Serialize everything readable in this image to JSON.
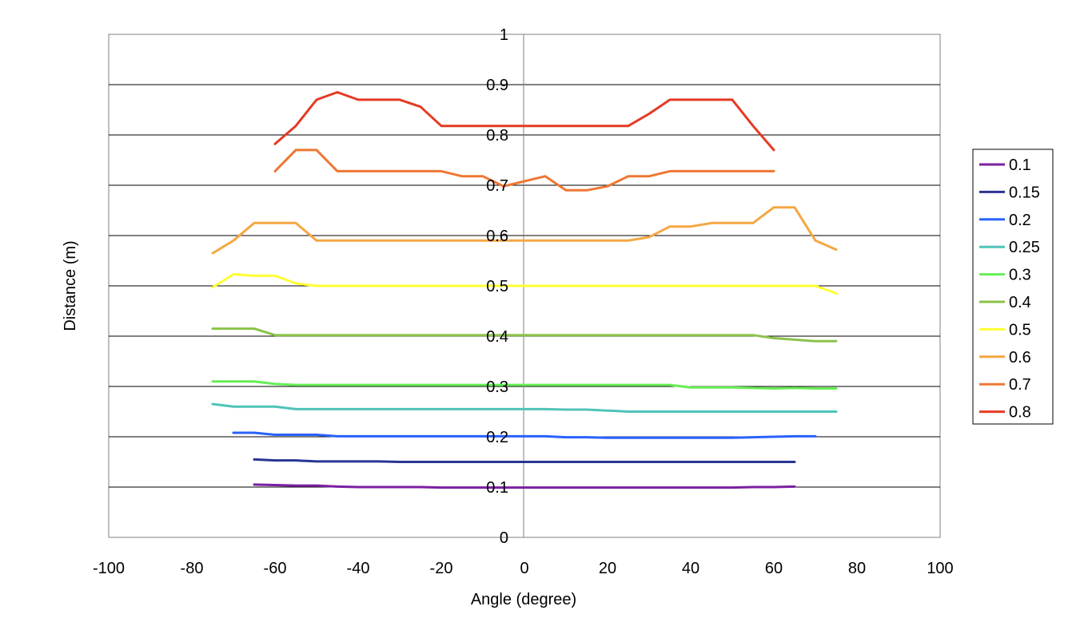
{
  "chart_data": {
    "type": "line",
    "title": "",
    "xlabel": "Angle (degree)",
    "ylabel": "Distance (m)",
    "xlim": [
      -100,
      100
    ],
    "ylim": [
      0,
      1
    ],
    "xticks": [
      -100,
      -80,
      -60,
      -40,
      -20,
      0,
      20,
      40,
      60,
      80,
      100
    ],
    "yticks": [
      0,
      0.1,
      0.2,
      0.3,
      0.4,
      0.5,
      0.6,
      0.7,
      0.8,
      0.9,
      1
    ],
    "grid": "horizontal",
    "legend_position": "right",
    "series": [
      {
        "name": "0.1",
        "color": "#7b1fa2",
        "x": [
          -65,
          -60,
          -55,
          -50,
          -45,
          -40,
          -35,
          -30,
          -25,
          -20,
          -15,
          -10,
          -5,
          0,
          5,
          10,
          15,
          20,
          25,
          30,
          35,
          40,
          45,
          50,
          55,
          60,
          65
        ],
        "y": [
          0.105,
          0.104,
          0.103,
          0.103,
          0.101,
          0.1,
          0.1,
          0.1,
          0.1,
          0.099,
          0.099,
          0.099,
          0.099,
          0.099,
          0.099,
          0.099,
          0.099,
          0.099,
          0.099,
          0.099,
          0.099,
          0.099,
          0.099,
          0.099,
          0.1,
          0.1,
          0.101
        ]
      },
      {
        "name": "0.15",
        "color": "#283593",
        "x": [
          -65,
          -60,
          -55,
          -50,
          -45,
          -40,
          -35,
          -30,
          -25,
          -20,
          -15,
          -10,
          -5,
          0,
          5,
          10,
          15,
          20,
          25,
          30,
          35,
          40,
          45,
          50,
          55,
          60,
          65
        ],
        "y": [
          0.155,
          0.153,
          0.153,
          0.151,
          0.151,
          0.151,
          0.151,
          0.15,
          0.15,
          0.15,
          0.15,
          0.15,
          0.15,
          0.15,
          0.15,
          0.15,
          0.15,
          0.15,
          0.15,
          0.15,
          0.15,
          0.15,
          0.15,
          0.15,
          0.15,
          0.15,
          0.15
        ]
      },
      {
        "name": "0.2",
        "color": "#2962ff",
        "x": [
          -70,
          -65,
          -60,
          -55,
          -50,
          -45,
          -40,
          -35,
          -30,
          -25,
          -20,
          -15,
          -10,
          -5,
          0,
          5,
          10,
          15,
          20,
          25,
          30,
          35,
          40,
          45,
          50,
          55,
          60,
          65,
          70
        ],
        "y": [
          0.208,
          0.208,
          0.204,
          0.204,
          0.204,
          0.201,
          0.201,
          0.201,
          0.201,
          0.201,
          0.201,
          0.201,
          0.201,
          0.201,
          0.201,
          0.201,
          0.199,
          0.199,
          0.198,
          0.198,
          0.198,
          0.198,
          0.198,
          0.198,
          0.198,
          0.199,
          0.2,
          0.201,
          0.201
        ]
      },
      {
        "name": "0.25",
        "color": "#4fc3b8",
        "x": [
          -75,
          -70,
          -65,
          -60,
          -55,
          -50,
          -45,
          -40,
          -35,
          -30,
          -25,
          -20,
          -15,
          -10,
          -5,
          0,
          5,
          10,
          15,
          20,
          25,
          30,
          35,
          40,
          45,
          50,
          55,
          60,
          65,
          70,
          75
        ],
        "y": [
          0.265,
          0.26,
          0.26,
          0.26,
          0.255,
          0.255,
          0.255,
          0.255,
          0.255,
          0.255,
          0.255,
          0.255,
          0.255,
          0.255,
          0.255,
          0.255,
          0.255,
          0.254,
          0.254,
          0.252,
          0.25,
          0.25,
          0.25,
          0.25,
          0.25,
          0.25,
          0.25,
          0.25,
          0.25,
          0.25,
          0.25
        ]
      },
      {
        "name": "0.3",
        "color": "#66ee55",
        "x": [
          -75,
          -70,
          -65,
          -60,
          -55,
          -50,
          -45,
          -40,
          -35,
          -30,
          -25,
          -20,
          -15,
          -10,
          -5,
          0,
          5,
          10,
          15,
          20,
          25,
          30,
          35,
          40,
          45,
          50,
          55,
          60,
          65,
          70,
          75
        ],
        "y": [
          0.31,
          0.31,
          0.31,
          0.305,
          0.303,
          0.303,
          0.303,
          0.303,
          0.303,
          0.303,
          0.303,
          0.303,
          0.303,
          0.303,
          0.303,
          0.303,
          0.303,
          0.303,
          0.303,
          0.303,
          0.303,
          0.303,
          0.303,
          0.298,
          0.298,
          0.298,
          0.297,
          0.296,
          0.297,
          0.296,
          0.296
        ]
      },
      {
        "name": "0.4",
        "color": "#8bc34a",
        "x": [
          -75,
          -70,
          -65,
          -60,
          -55,
          -50,
          -45,
          -40,
          -35,
          -30,
          -25,
          -20,
          -15,
          -10,
          -5,
          0,
          5,
          10,
          15,
          20,
          25,
          30,
          35,
          40,
          45,
          50,
          55,
          60,
          65,
          70,
          75
        ],
        "y": [
          0.415,
          0.415,
          0.415,
          0.402,
          0.402,
          0.402,
          0.402,
          0.402,
          0.402,
          0.402,
          0.402,
          0.402,
          0.402,
          0.402,
          0.402,
          0.402,
          0.402,
          0.402,
          0.402,
          0.402,
          0.402,
          0.402,
          0.402,
          0.402,
          0.402,
          0.402,
          0.402,
          0.396,
          0.393,
          0.39,
          0.39
        ]
      },
      {
        "name": "0.5",
        "color": "#ffff33",
        "x": [
          -75,
          -70,
          -65,
          -60,
          -55,
          -50,
          -45,
          -40,
          -35,
          -30,
          -25,
          -20,
          -15,
          -10,
          -5,
          0,
          5,
          10,
          15,
          20,
          25,
          30,
          35,
          40,
          45,
          50,
          55,
          60,
          65,
          70,
          75
        ],
        "y": [
          0.497,
          0.523,
          0.52,
          0.52,
          0.505,
          0.5,
          0.5,
          0.5,
          0.5,
          0.5,
          0.5,
          0.5,
          0.5,
          0.5,
          0.5,
          0.5,
          0.5,
          0.5,
          0.5,
          0.5,
          0.5,
          0.5,
          0.5,
          0.5,
          0.5,
          0.5,
          0.5,
          0.5,
          0.5,
          0.5,
          0.485
        ]
      },
      {
        "name": "0.6",
        "color": "#f5a742",
        "x": [
          -75,
          -70,
          -65,
          -60,
          -55,
          -50,
          -45,
          -40,
          -35,
          -30,
          -25,
          -20,
          -15,
          -10,
          -5,
          0,
          5,
          10,
          15,
          20,
          25,
          30,
          35,
          40,
          45,
          50,
          55,
          60,
          65,
          70,
          75
        ],
        "y": [
          0.565,
          0.59,
          0.625,
          0.625,
          0.625,
          0.59,
          0.59,
          0.59,
          0.59,
          0.59,
          0.59,
          0.59,
          0.59,
          0.59,
          0.59,
          0.59,
          0.59,
          0.59,
          0.59,
          0.59,
          0.59,
          0.597,
          0.618,
          0.618,
          0.625,
          0.625,
          0.625,
          0.656,
          0.656,
          0.59,
          0.572
        ]
      },
      {
        "name": "0.7",
        "color": "#ee7733",
        "x": [
          -60,
          -55,
          -50,
          -45,
          -40,
          -35,
          -30,
          -25,
          -20,
          -15,
          -10,
          -5,
          0,
          5,
          10,
          15,
          20,
          25,
          30,
          35,
          40,
          45,
          50,
          55,
          60
        ],
        "y": [
          0.728,
          0.77,
          0.77,
          0.728,
          0.728,
          0.728,
          0.728,
          0.728,
          0.728,
          0.718,
          0.718,
          0.698,
          0.708,
          0.718,
          0.69,
          0.69,
          0.698,
          0.718,
          0.718,
          0.728,
          0.728,
          0.728,
          0.728,
          0.728,
          0.728
        ]
      },
      {
        "name": "0.8",
        "color": "#e53a23",
        "x": [
          -60,
          -55,
          -50,
          -45,
          -40,
          -35,
          -30,
          -25,
          -20,
          -15,
          -10,
          -5,
          0,
          5,
          10,
          15,
          20,
          25,
          30,
          35,
          40,
          45,
          50,
          55,
          60
        ],
        "y": [
          0.782,
          0.818,
          0.87,
          0.885,
          0.87,
          0.87,
          0.87,
          0.856,
          0.818,
          0.818,
          0.818,
          0.818,
          0.818,
          0.818,
          0.818,
          0.818,
          0.818,
          0.818,
          0.842,
          0.87,
          0.87,
          0.87,
          0.87,
          0.818,
          0.77
        ]
      }
    ]
  }
}
